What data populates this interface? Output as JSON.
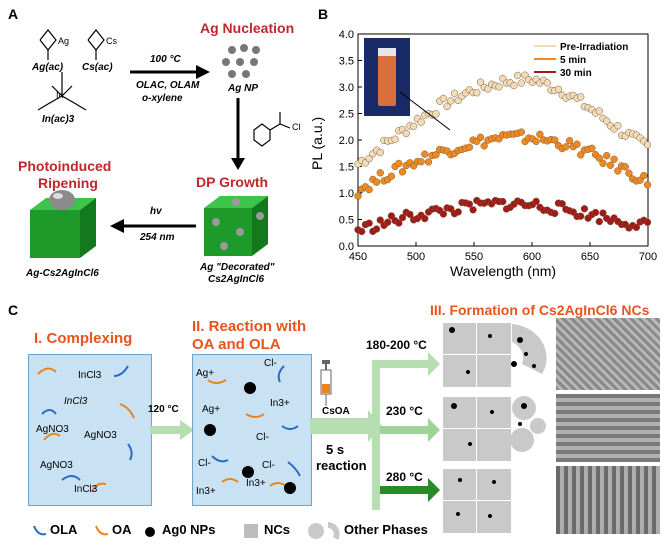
{
  "panel_a": {
    "letter": "A",
    "precursors": [
      "Ag(ac)",
      "Cs(ac)",
      "In(ac)3"
    ],
    "ag_sym": "Ag",
    "cs_sym": "Cs",
    "in_sym": "In",
    "conditions": [
      "100 °C",
      "OLAC, OLAM",
      "o-xylene"
    ],
    "ag_nucleation": "Ag Nucleation",
    "ag_np": "Ag NP",
    "benzoyl_cl": "Cl",
    "dp_growth": "DP Growth",
    "dp_label_1": "Ag \"Decorated\"",
    "dp_label_2": "Cs2AgInCl6",
    "hv": "hv",
    "uv": "254 nm",
    "photo_title_1": "Photoinduced",
    "photo_title_2": "Ripening",
    "product": "Ag-Cs2AgInCl6"
  },
  "panel_b": {
    "letter": "B",
    "chart_data": {
      "type": "scatter",
      "xlabel": "Wavelength (nm)",
      "ylabel": "PL (a.u.)",
      "xlim": [
        450,
        700
      ],
      "ylim": [
        0.0,
        4.0
      ],
      "xticks": [
        450,
        500,
        550,
        600,
        650,
        700
      ],
      "yticks": [
        0.0,
        0.5,
        1.0,
        1.5,
        2.0,
        2.5,
        3.0,
        3.5,
        4.0
      ],
      "legend_position": "top-right",
      "series": [
        {
          "name": "Pre-Irradiation",
          "color": "#f2dcb8",
          "x": [
            450,
            475,
            500,
            525,
            550,
            575,
            600,
            625,
            650,
            675,
            700
          ],
          "y": [
            1.55,
            1.95,
            2.35,
            2.7,
            2.95,
            3.1,
            3.15,
            2.95,
            2.6,
            2.2,
            1.85
          ]
        },
        {
          "name": "5 min",
          "color": "#f08a20",
          "x": [
            450,
            475,
            500,
            525,
            550,
            575,
            600,
            625,
            650,
            675,
            700
          ],
          "y": [
            1.05,
            1.35,
            1.6,
            1.8,
            1.95,
            2.05,
            2.05,
            1.95,
            1.75,
            1.5,
            1.2
          ]
        },
        {
          "name": "30 min",
          "color": "#a01a1a",
          "x": [
            450,
            475,
            500,
            525,
            550,
            575,
            600,
            625,
            650,
            675,
            700
          ],
          "y": [
            0.3,
            0.45,
            0.58,
            0.67,
            0.75,
            0.8,
            0.78,
            0.7,
            0.6,
            0.48,
            0.38
          ]
        }
      ]
    }
  },
  "panel_c": {
    "letter": "C",
    "step1_title": "I. Complexing",
    "step2_title_1": "II. Reaction with",
    "step2_title_2": "OA and OLA",
    "step3_title": "III. Formation of Cs2AgInCl6 NCs",
    "box1_labels": [
      "InCl3",
      "InCl3",
      "AgNO3",
      "AgNO3",
      "AgNO3",
      "InCl3"
    ],
    "box2_labels": [
      "Ag+",
      "Cl-",
      "Ag+",
      "In3+",
      "Cl-",
      "Cl-",
      "Cl-",
      "In3+",
      "In3+"
    ],
    "temp1": "120 °C",
    "csoa": "CsOA",
    "time_1": "5 s",
    "time_2": "reaction",
    "temps": [
      "180-200 °C",
      "230 °C",
      "280 °C"
    ],
    "legend": {
      "ola": "OLA",
      "oa": "OA",
      "ag0": "Ag0 NPs",
      "ncs": "NCs",
      "other": "Other Phases"
    }
  }
}
